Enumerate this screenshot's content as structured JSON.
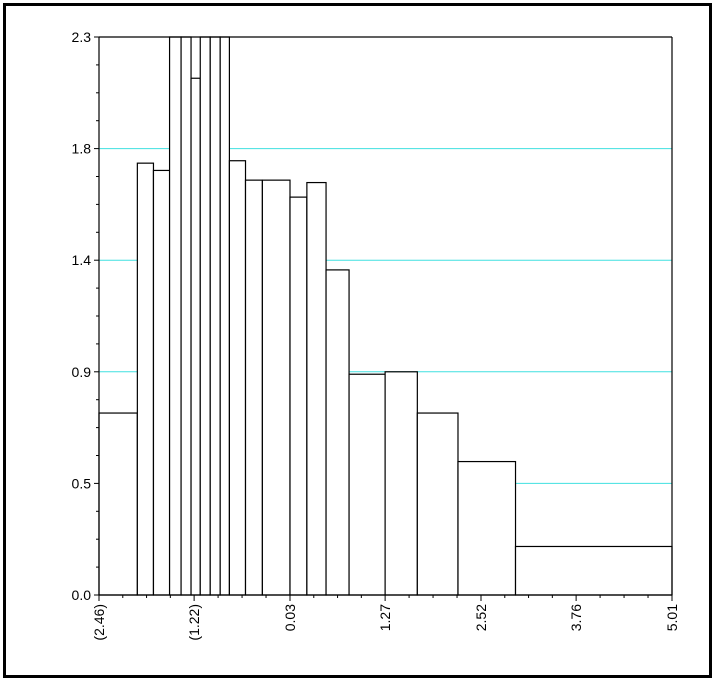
{
  "chart_data": {
    "type": "bar",
    "title": "",
    "xlabel": "",
    "ylabel": "",
    "ylim": [
      0.0,
      2.3
    ],
    "xlim": [
      -2.46,
      5.01
    ],
    "y_ticks": [
      "0.0",
      "0.5",
      "0.9",
      "1.4",
      "1.8",
      "2.3"
    ],
    "x_ticks": [
      "(2.46)",
      "(1.22)",
      "0.03",
      "1.27",
      "2.52",
      "3.76",
      "5.01"
    ],
    "x_tick_values": [
      -2.46,
      -1.22,
      0.03,
      1.27,
      2.52,
      3.76,
      5.01
    ],
    "grid": "horizontal",
    "grid_color": "#40E0E0",
    "bar_fill": "#FFFFFF",
    "bar_edge": "#000000",
    "bins": [
      {
        "start": -2.46,
        "end": -1.96,
        "value": 0.75
      },
      {
        "start": -1.96,
        "end": -1.75,
        "value": 1.78
      },
      {
        "start": -1.75,
        "end": -1.54,
        "value": 1.75
      },
      {
        "start": -1.54,
        "end": -1.39,
        "value": 2.3
      },
      {
        "start": -1.39,
        "end": -1.26,
        "value": 2.3
      },
      {
        "start": -1.26,
        "end": -1.14,
        "value": 2.13
      },
      {
        "start": -1.14,
        "end": -1.01,
        "value": 2.3
      },
      {
        "start": -1.01,
        "end": -0.88,
        "value": 2.3
      },
      {
        "start": -0.88,
        "end": -0.76,
        "value": 2.3
      },
      {
        "start": -0.76,
        "end": -0.55,
        "value": 1.79
      },
      {
        "start": -0.55,
        "end": -0.33,
        "value": 1.71
      },
      {
        "start": -0.33,
        "end": 0.03,
        "value": 1.71
      },
      {
        "start": 0.03,
        "end": 0.25,
        "value": 1.64
      },
      {
        "start": 0.25,
        "end": 0.5,
        "value": 1.7
      },
      {
        "start": 0.5,
        "end": 0.8,
        "value": 1.34
      },
      {
        "start": 0.8,
        "end": 1.27,
        "value": 0.91
      },
      {
        "start": 1.27,
        "end": 1.69,
        "value": 0.92
      },
      {
        "start": 1.69,
        "end": 2.22,
        "value": 0.75
      },
      {
        "start": 2.22,
        "end": 2.97,
        "value": 0.55
      },
      {
        "start": 2.97,
        "end": 5.01,
        "value": 0.2
      }
    ]
  }
}
